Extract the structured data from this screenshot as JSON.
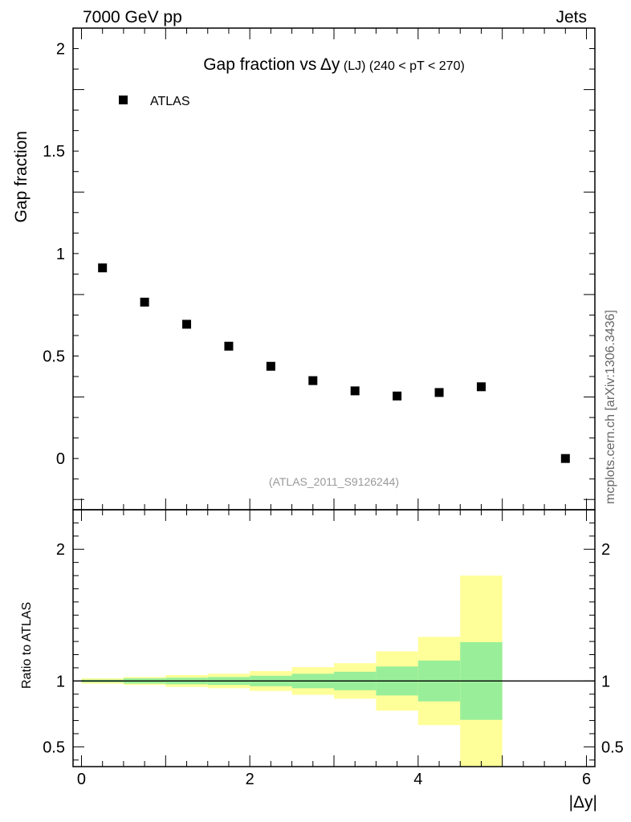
{
  "header": {
    "energy_label": "7000 GeV pp",
    "category_label": "Jets"
  },
  "side_label": "mcplots.cern.ch [arXiv:1306.3436]",
  "analysis_label": "(ATLAS_2011_S9126244)",
  "chart_data": [
    {
      "type": "scatter",
      "title": "Gap fraction vs Δy (LJ) (240 < pT < 270)",
      "title_main": "Gap fraction vs",
      "title_delta": "Δy",
      "title_sub": "(LJ)",
      "title_range": "(240 < pT < 270)",
      "ylabel": "Gap fraction",
      "xlim": [
        -0.1,
        6.1
      ],
      "ylim": [
        -0.25,
        2.1
      ],
      "yticks": [
        0,
        0.5,
        1,
        1.5,
        2
      ],
      "ytick_labels": [
        "0",
        "0.5",
        "1",
        "1.5",
        "2"
      ],
      "legend_position": "top-left",
      "series": [
        {
          "name": "ATLAS",
          "color": "#000000",
          "marker": "square",
          "x": [
            0.25,
            0.75,
            1.25,
            1.75,
            2.25,
            2.75,
            3.25,
            3.75,
            4.25,
            4.75,
            5.75
          ],
          "y": [
            0.93,
            0.763,
            0.655,
            0.548,
            0.45,
            0.38,
            0.33,
            0.305,
            0.322,
            0.35,
            0.0
          ]
        }
      ]
    },
    {
      "type": "area",
      "ylabel": "Ratio to ATLAS",
      "xlabel": "|Δy|",
      "xlim": [
        -0.1,
        6.1
      ],
      "ylim": [
        0.35,
        2.3
      ],
      "yticks": [
        0.5,
        1,
        2
      ],
      "ytick_labels": [
        "0.5",
        "1",
        "2"
      ],
      "xticks": [
        0,
        2,
        4,
        6
      ],
      "xtick_labels": [
        "0",
        "2",
        "4",
        "6"
      ],
      "reference_line": 1,
      "bins": [
        {
          "x": [
            0.0,
            0.5
          ],
          "inner": [
            0.99,
            1.01
          ],
          "outer": [
            0.98,
            1.02
          ]
        },
        {
          "x": [
            0.5,
            1.0
          ],
          "inner": [
            0.98,
            1.02
          ],
          "outer": [
            0.97,
            1.03
          ]
        },
        {
          "x": [
            1.0,
            1.5
          ],
          "inner": [
            0.975,
            1.025
          ],
          "outer": [
            0.955,
            1.045
          ]
        },
        {
          "x": [
            1.5,
            2.0
          ],
          "inner": [
            0.97,
            1.03
          ],
          "outer": [
            0.945,
            1.055
          ]
        },
        {
          "x": [
            2.0,
            2.5
          ],
          "inner": [
            0.96,
            1.04
          ],
          "outer": [
            0.925,
            1.075
          ]
        },
        {
          "x": [
            2.5,
            3.0
          ],
          "inner": [
            0.945,
            1.055
          ],
          "outer": [
            0.895,
            1.105
          ]
        },
        {
          "x": [
            3.0,
            3.5
          ],
          "inner": [
            0.93,
            1.07
          ],
          "outer": [
            0.865,
            1.135
          ]
        },
        {
          "x": [
            3.5,
            4.0
          ],
          "inner": [
            0.89,
            1.11
          ],
          "outer": [
            0.775,
            1.225
          ]
        },
        {
          "x": [
            4.0,
            4.5
          ],
          "inner": [
            0.845,
            1.155
          ],
          "outer": [
            0.665,
            1.335
          ]
        },
        {
          "x": [
            4.5,
            5.0
          ],
          "inner": [
            0.705,
            1.295
          ],
          "outer": [
            0.35,
            1.8
          ]
        }
      ],
      "colors": {
        "inner": "#99ee99",
        "outer": "#ffff99",
        "line": "#000000"
      }
    }
  ]
}
